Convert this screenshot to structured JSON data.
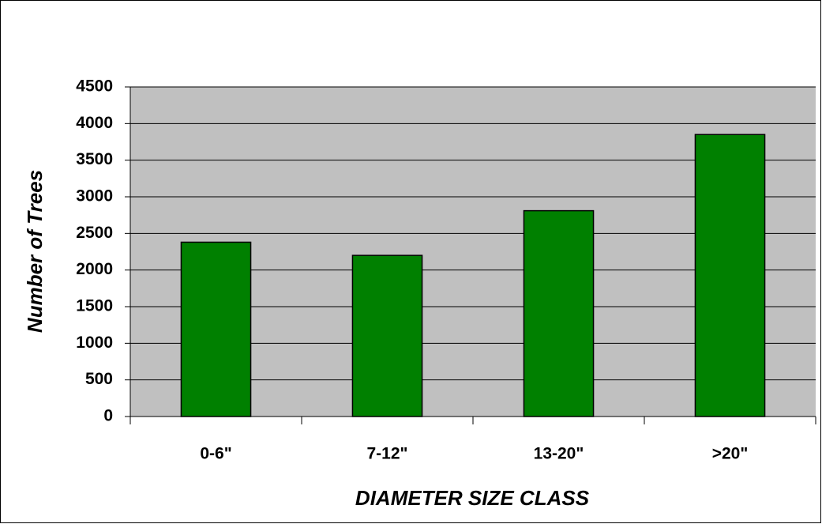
{
  "chart_data": {
    "type": "bar",
    "categories": [
      "0-6\"",
      "7-12\"",
      "13-20\"",
      ">20\""
    ],
    "values": [
      2380,
      2200,
      2810,
      3850
    ],
    "color": "#008000",
    "xlabel": "DIAMETER SIZE CLASS",
    "ylabel": "Number of Trees",
    "ylim": [
      0,
      4500
    ],
    "yticks": [
      0,
      500,
      1000,
      1500,
      2000,
      2500,
      3000,
      3500,
      4000,
      4500
    ],
    "grid": true
  }
}
